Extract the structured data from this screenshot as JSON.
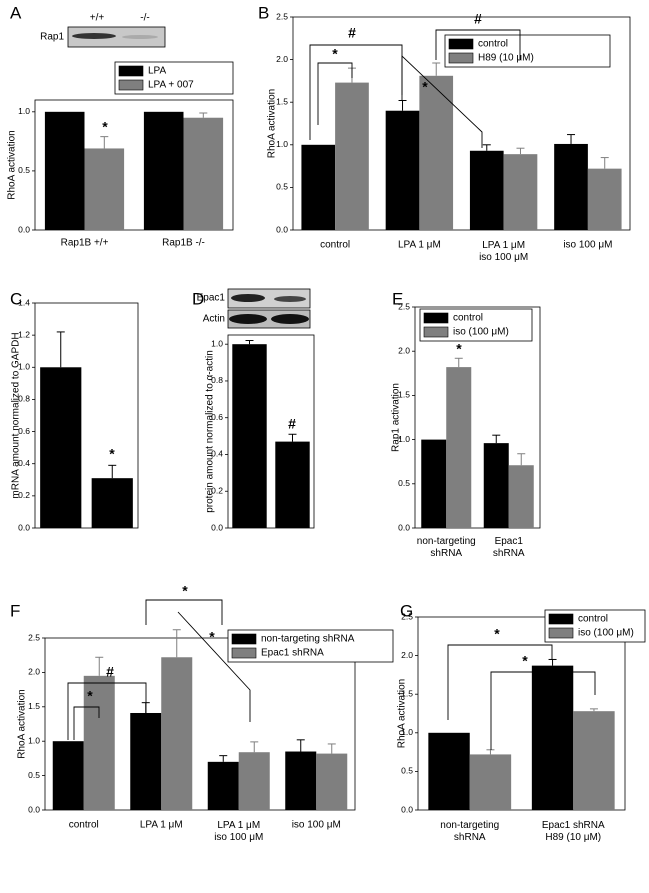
{
  "chart_data": [
    {
      "type": "bar",
      "label": "A",
      "blot_labels": [
        "Rap1",
        "+/+",
        "-/-"
      ],
      "categories": [
        "Rap1B +/+",
        "Rap1B -/-"
      ],
      "series": [
        {
          "name": "LPA",
          "color": "#000000",
          "values": [
            1.0,
            1.0
          ],
          "errors": [
            null,
            null
          ]
        },
        {
          "name": "LPA + 007",
          "color": "#7f7f7f",
          "values": [
            0.69,
            0.95
          ],
          "errors": [
            0.1,
            0.04
          ]
        }
      ],
      "ylabel": "RhoA activation",
      "ylim": [
        0,
        1.1
      ],
      "yticks": [
        {
          "value": 0,
          "label": "0.0"
        },
        {
          "value": 0.5,
          "label": "0.5"
        },
        {
          "value": 1,
          "label": "1.0"
        }
      ],
      "annotations": [
        "*"
      ]
    },
    {
      "type": "bar",
      "label": "B",
      "categories": [
        "control",
        "LPA 1 μM",
        "LPA 1 μM\niso 100 μM",
        "iso 100 μM"
      ],
      "series": [
        {
          "name": "control",
          "color": "#000000",
          "values": [
            1.0,
            1.4,
            0.93,
            1.01
          ],
          "errors": [
            null,
            0.12,
            0.07,
            0.11
          ]
        },
        {
          "name": "H89 (10 μM)",
          "color": "#7f7f7f",
          "values": [
            1.73,
            1.81,
            0.89,
            0.72
          ],
          "errors": [
            0.17,
            0.15,
            0.07,
            0.13
          ]
        }
      ],
      "ylabel": "RhoA activation",
      "ylim": [
        0,
        2.5
      ],
      "yticks": [
        {
          "value": 0,
          "label": "0.0"
        },
        {
          "value": 0.5,
          "label": "0.5"
        },
        {
          "value": 1,
          "label": "1.0"
        },
        {
          "value": 1.5,
          "label": "1.5"
        },
        {
          "value": 2,
          "label": "2.0"
        },
        {
          "value": 2.5,
          "label": "2.5"
        }
      ],
      "annotations": [
        "*",
        "#",
        "#",
        "*"
      ]
    },
    {
      "type": "bar",
      "label": "C",
      "categories": [
        null,
        null
      ],
      "series": [
        {
          "color": "#000000",
          "values": [
            1.0,
            0.31
          ],
          "errors": [
            0.22,
            0.08
          ]
        }
      ],
      "ylabel": "mRNA amount normalized to GAPDH",
      "ylim": [
        0,
        1.4
      ],
      "yticks": [
        {
          "value": 0,
          "label": "0.0"
        },
        {
          "value": 0.2,
          "label": "0.2"
        },
        {
          "value": 0.4,
          "label": "0.4"
        },
        {
          "value": 0.6,
          "label": "0.6"
        },
        {
          "value": 0.8,
          "label": "0.8"
        },
        {
          "value": 1,
          "label": "1.0"
        },
        {
          "value": 1.2,
          "label": "1.2"
        },
        {
          "value": 1.4,
          "label": "1.4"
        }
      ],
      "annotations": [
        "*"
      ]
    },
    {
      "type": "bar",
      "label": "D",
      "blot_labels": [
        "Epac1",
        "Actin"
      ],
      "categories": [
        null,
        null
      ],
      "series": [
        {
          "color": "#000000",
          "values": [
            1.0,
            0.47
          ],
          "errors": [
            0.02,
            0.04
          ]
        }
      ],
      "ylabel": "protein amount normalized to α-actin",
      "ylim": [
        0,
        1.05
      ],
      "yticks": [
        {
          "value": 0,
          "label": "0.0"
        },
        {
          "value": 0.2,
          "label": "0.2"
        },
        {
          "value": 0.4,
          "label": "0.4"
        },
        {
          "value": 0.6,
          "label": "0.6"
        },
        {
          "value": 0.8,
          "label": "0.8"
        },
        {
          "value": 1,
          "label": "1.0"
        }
      ],
      "annotations": [
        "#"
      ]
    },
    {
      "type": "bar",
      "label": "E",
      "categories": [
        "non-targeting\nshRNA",
        "Epac1\nshRNA"
      ],
      "series": [
        {
          "name": "control",
          "color": "#000000",
          "values": [
            1.0,
            0.96
          ],
          "errors": [
            null,
            0.09
          ]
        },
        {
          "name": "iso (100 μM)",
          "color": "#7f7f7f",
          "values": [
            1.82,
            0.71
          ],
          "errors": [
            0.1,
            0.13
          ]
        }
      ],
      "ylabel": "Rap1 activation",
      "ylim": [
        0,
        2.5
      ],
      "yticks": [
        {
          "value": 0,
          "label": "0.0"
        },
        {
          "value": 0.5,
          "label": "0.5"
        },
        {
          "value": 1,
          "label": "1.0"
        },
        {
          "value": 1.5,
          "label": "1.5"
        },
        {
          "value": 2,
          "label": "2.0"
        },
        {
          "value": 2.5,
          "label": "2.5"
        }
      ],
      "annotations": [
        "*"
      ]
    },
    {
      "type": "bar",
      "label": "F",
      "categories": [
        "control",
        "LPA 1 μM",
        "LPA 1 μM\niso 100 μM",
        "iso 100 μM"
      ],
      "series": [
        {
          "name": "non-targeting shRNA",
          "color": "#000000",
          "values": [
            1.0,
            1.41,
            0.7,
            0.85
          ],
          "errors": [
            null,
            0.15,
            0.09,
            0.17
          ]
        },
        {
          "name": "Epac1 shRNA",
          "color": "#7f7f7f",
          "values": [
            1.95,
            2.22,
            0.84,
            0.82
          ],
          "errors": [
            0.27,
            0.4,
            0.15,
            0.14
          ]
        }
      ],
      "ylabel": "RhoA activation",
      "ylim": [
        0,
        2.5
      ],
      "yticks": [
        {
          "value": 0,
          "label": "0.0"
        },
        {
          "value": 0.5,
          "label": "0.5"
        },
        {
          "value": 1,
          "label": "1.0"
        },
        {
          "value": 1.5,
          "label": "1.5"
        },
        {
          "value": 2,
          "label": "2.0"
        },
        {
          "value": 2.5,
          "label": "2.5"
        }
      ],
      "annotations": [
        "*",
        "#",
        "*",
        "*"
      ]
    },
    {
      "type": "bar",
      "label": "G",
      "categories": [
        "non-targeting\nshRNA",
        "Epac1 shRNA\nH89 (10 μM)"
      ],
      "series": [
        {
          "name": "control",
          "color": "#000000",
          "values": [
            1.0,
            1.87
          ],
          "errors": [
            null,
            0.08
          ]
        },
        {
          "name": "iso (100 μM)",
          "color": "#7f7f7f",
          "values": [
            0.72,
            1.28
          ],
          "errors": [
            0.06,
            0.03
          ]
        }
      ],
      "ylabel": "RhoA activation",
      "ylim": [
        0,
        2.5
      ],
      "yticks": [
        {
          "value": 0,
          "label": "0.0"
        },
        {
          "value": 0.5,
          "label": "0.5"
        },
        {
          "value": 1,
          "label": "1.0"
        },
        {
          "value": 1.5,
          "label": "1.5"
        },
        {
          "value": 2,
          "label": "2.0"
        },
        {
          "value": 2.5,
          "label": "2.5"
        }
      ],
      "annotations": [
        "*",
        "*"
      ]
    }
  ]
}
